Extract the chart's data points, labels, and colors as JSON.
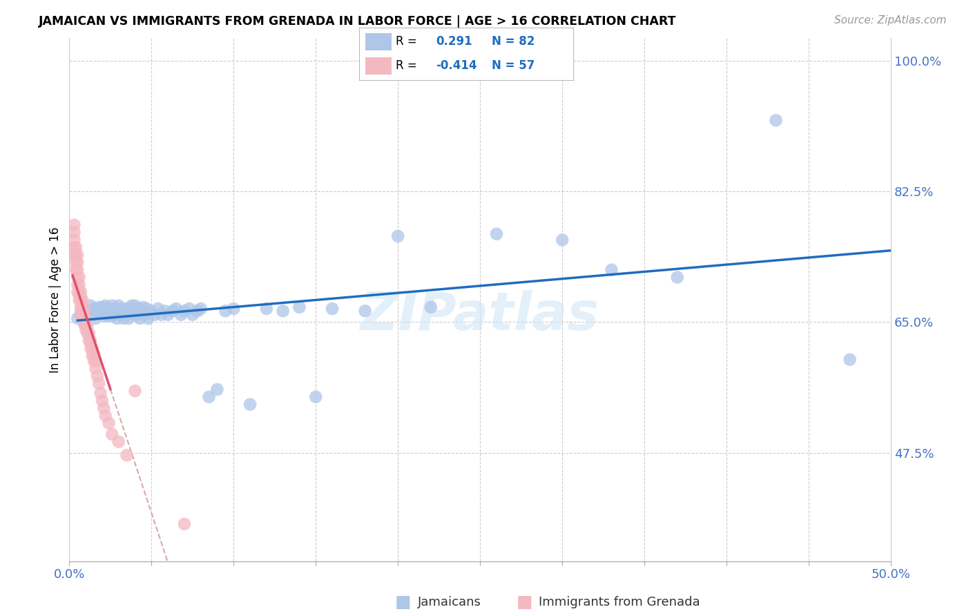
{
  "title": "JAMAICAN VS IMMIGRANTS FROM GRENADA IN LABOR FORCE | AGE > 16 CORRELATION CHART",
  "source_text": "Source: ZipAtlas.com",
  "ylabel": "In Labor Force | Age > 16",
  "xlim": [
    0.0,
    0.5
  ],
  "ylim": [
    0.33,
    1.03
  ],
  "xtick_positions": [
    0.0,
    0.05,
    0.1,
    0.15,
    0.2,
    0.25,
    0.3,
    0.35,
    0.4,
    0.45,
    0.5
  ],
  "yticks_right": [
    0.475,
    0.65,
    0.825,
    1.0
  ],
  "ytick_right_labels": [
    "47.5%",
    "65.0%",
    "82.5%",
    "100.0%"
  ],
  "r_blue": 0.291,
  "n_blue": 82,
  "r_pink": -0.414,
  "n_pink": 57,
  "blue_color": "#aec6e8",
  "pink_color": "#f4b8c1",
  "blue_line_color": "#1f6dbf",
  "pink_line_color": "#e0506a",
  "pink_dash_color": "#d8a8b0",
  "watermark": "ZIPatlas",
  "legend_blue_label": "Jamaicans",
  "legend_pink_label": "Immigrants from Grenada",
  "blue_points_x": [
    0.005,
    0.007,
    0.008,
    0.009,
    0.01,
    0.01,
    0.012,
    0.013,
    0.015,
    0.015,
    0.016,
    0.017,
    0.018,
    0.019,
    0.02,
    0.02,
    0.021,
    0.022,
    0.022,
    0.023,
    0.024,
    0.025,
    0.025,
    0.026,
    0.027,
    0.028,
    0.029,
    0.03,
    0.03,
    0.031,
    0.032,
    0.033,
    0.034,
    0.035,
    0.035,
    0.036,
    0.037,
    0.038,
    0.039,
    0.04,
    0.04,
    0.041,
    0.042,
    0.043,
    0.044,
    0.045,
    0.046,
    0.047,
    0.048,
    0.05,
    0.052,
    0.054,
    0.056,
    0.058,
    0.06,
    0.063,
    0.065,
    0.068,
    0.07,
    0.073,
    0.075,
    0.078,
    0.08,
    0.085,
    0.09,
    0.095,
    0.1,
    0.11,
    0.12,
    0.13,
    0.14,
    0.15,
    0.16,
    0.18,
    0.2,
    0.22,
    0.26,
    0.3,
    0.33,
    0.37,
    0.43,
    0.475
  ],
  "blue_points_y": [
    0.655,
    0.66,
    0.67,
    0.65,
    0.645,
    0.658,
    0.665,
    0.672,
    0.66,
    0.668,
    0.655,
    0.665,
    0.67,
    0.662,
    0.665,
    0.67,
    0.658,
    0.665,
    0.672,
    0.66,
    0.668,
    0.658,
    0.665,
    0.672,
    0.66,
    0.668,
    0.655,
    0.665,
    0.672,
    0.66,
    0.668,
    0.655,
    0.665,
    0.66,
    0.668,
    0.655,
    0.665,
    0.672,
    0.66,
    0.665,
    0.672,
    0.66,
    0.668,
    0.655,
    0.665,
    0.67,
    0.66,
    0.668,
    0.655,
    0.665,
    0.66,
    0.668,
    0.66,
    0.665,
    0.66,
    0.665,
    0.668,
    0.66,
    0.665,
    0.668,
    0.66,
    0.665,
    0.668,
    0.55,
    0.56,
    0.665,
    0.668,
    0.54,
    0.668,
    0.665,
    0.67,
    0.55,
    0.668,
    0.665,
    0.765,
    0.67,
    0.768,
    0.76,
    0.72,
    0.71,
    0.92,
    0.6
  ],
  "pink_points_x": [
    0.003,
    0.003,
    0.003,
    0.003,
    0.003,
    0.004,
    0.004,
    0.004,
    0.004,
    0.005,
    0.005,
    0.005,
    0.005,
    0.005,
    0.005,
    0.006,
    0.006,
    0.006,
    0.006,
    0.007,
    0.007,
    0.007,
    0.007,
    0.008,
    0.008,
    0.008,
    0.008,
    0.009,
    0.009,
    0.009,
    0.01,
    0.01,
    0.01,
    0.011,
    0.011,
    0.012,
    0.012,
    0.013,
    0.013,
    0.014,
    0.014,
    0.015,
    0.015,
    0.016,
    0.016,
    0.017,
    0.018,
    0.019,
    0.02,
    0.021,
    0.022,
    0.024,
    0.026,
    0.03,
    0.035,
    0.04,
    0.07
  ],
  "pink_points_y": [
    0.74,
    0.75,
    0.76,
    0.77,
    0.78,
    0.72,
    0.73,
    0.74,
    0.75,
    0.69,
    0.7,
    0.71,
    0.72,
    0.73,
    0.74,
    0.68,
    0.69,
    0.7,
    0.71,
    0.665,
    0.67,
    0.68,
    0.69,
    0.655,
    0.66,
    0.67,
    0.68,
    0.648,
    0.655,
    0.665,
    0.64,
    0.648,
    0.655,
    0.635,
    0.645,
    0.625,
    0.635,
    0.615,
    0.625,
    0.605,
    0.615,
    0.598,
    0.608,
    0.588,
    0.598,
    0.578,
    0.568,
    0.555,
    0.545,
    0.535,
    0.525,
    0.515,
    0.5,
    0.49,
    0.472,
    0.558,
    0.38
  ],
  "pink_line_x_solid_start": 0.002,
  "pink_line_x_solid_end": 0.025,
  "pink_line_x_dash_end": 0.22,
  "blue_line_x_start": 0.005,
  "blue_line_x_end": 0.5
}
